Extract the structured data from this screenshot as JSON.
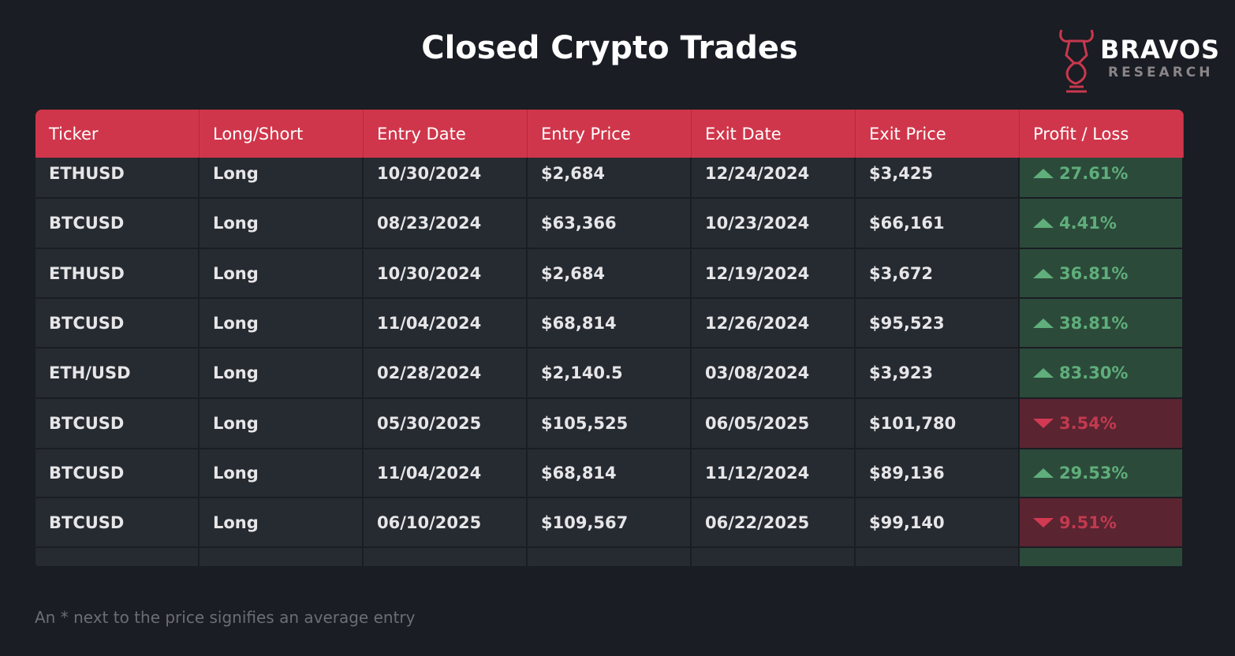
{
  "header": {
    "title": "Closed Crypto Trades",
    "brand": "BRAVOS",
    "brand_sub": "RESEARCH"
  },
  "table": {
    "columns": [
      "Ticker",
      "Long/Short",
      "Entry Date",
      "Entry Price",
      "Exit Date",
      "Exit Price",
      "Profit / Loss"
    ],
    "rows": [
      {
        "cells": [
          "ETHUSD",
          "Long",
          "10/30/2024",
          "$2,684",
          "12/24/2024",
          "$3,425"
        ],
        "pl": "27.61%",
        "trend": "up"
      },
      {
        "cells": [
          "BTCUSD",
          "Long",
          "08/23/2024",
          "$63,366",
          "10/23/2024",
          "$66,161"
        ],
        "pl": "4.41%",
        "trend": "up"
      },
      {
        "cells": [
          "ETHUSD",
          "Long",
          "10/30/2024",
          "$2,684",
          "12/19/2024",
          "$3,672"
        ],
        "pl": "36.81%",
        "trend": "up"
      },
      {
        "cells": [
          "BTCUSD",
          "Long",
          "11/04/2024",
          "$68,814",
          "12/26/2024",
          "$95,523"
        ],
        "pl": "38.81%",
        "trend": "up"
      },
      {
        "cells": [
          "ETH/USD",
          "Long",
          "02/28/2024",
          "$2,140.5",
          "03/08/2024",
          "$3,923"
        ],
        "pl": "83.30%",
        "trend": "up"
      },
      {
        "cells": [
          "BTCUSD",
          "Long",
          "05/30/2025",
          "$105,525",
          "06/05/2025",
          "$101,780"
        ],
        "pl": "3.54%",
        "trend": "down"
      },
      {
        "cells": [
          "BTCUSD",
          "Long",
          "11/04/2024",
          "$68,814",
          "11/12/2024",
          "$89,136"
        ],
        "pl": "29.53%",
        "trend": "up"
      },
      {
        "cells": [
          "BTCUSD",
          "Long",
          "06/10/2025",
          "$109,567",
          "06/22/2025",
          "$99,140"
        ],
        "pl": "9.51%",
        "trend": "down"
      }
    ]
  },
  "footnote": "An * next to the price signifies an average entry"
}
